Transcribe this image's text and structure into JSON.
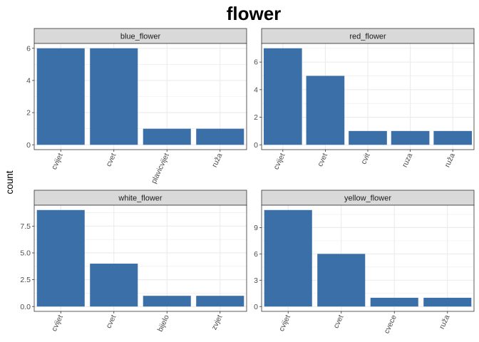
{
  "chart_data": {
    "type": "bar",
    "title": "flower",
    "xlabel": "",
    "ylabel": "count",
    "bar_color": "#3A6FA8",
    "strip_fill": "#D9D9D9",
    "grid_color": "#EBEBEB",
    "grid": true,
    "facets": [
      {
        "name": "blue_flower",
        "categories": [
          "cvijet",
          "cvet",
          "plavicvijet",
          "ruža"
        ],
        "values": [
          6,
          6,
          1,
          1
        ],
        "ylim": [
          -0.3,
          6.3
        ],
        "yticks": [
          0,
          2,
          4,
          6
        ],
        "ytick_labels": [
          "0",
          "2",
          "4",
          "6"
        ]
      },
      {
        "name": "red_flower",
        "categories": [
          "cvijet",
          "cvet",
          "cvit",
          "ruza",
          "ruža"
        ],
        "values": [
          7,
          5,
          1,
          1,
          1
        ],
        "ylim": [
          -0.35,
          7.35
        ],
        "yticks": [
          0,
          2,
          4,
          6
        ],
        "ytick_labels": [
          "0",
          "2",
          "4",
          "6"
        ]
      },
      {
        "name": "white_flower",
        "categories": [
          "cvijet",
          "cvet",
          "bijelo",
          "zvjet"
        ],
        "values": [
          9,
          4,
          1,
          1
        ],
        "ylim": [
          -0.45,
          9.45
        ],
        "yticks": [
          0,
          2.5,
          5,
          7.5
        ],
        "ytick_labels": [
          "0.0",
          "2.5",
          "5.0",
          "7.5"
        ]
      },
      {
        "name": "yellow_flower",
        "categories": [
          "cvijet",
          "cvet",
          "cvece",
          "ruža"
        ],
        "values": [
          11,
          6,
          1,
          1
        ],
        "ylim": [
          -0.55,
          11.55
        ],
        "yticks": [
          0,
          3,
          6,
          9
        ],
        "ytick_labels": [
          "0",
          "3",
          "6",
          "9"
        ]
      }
    ]
  }
}
